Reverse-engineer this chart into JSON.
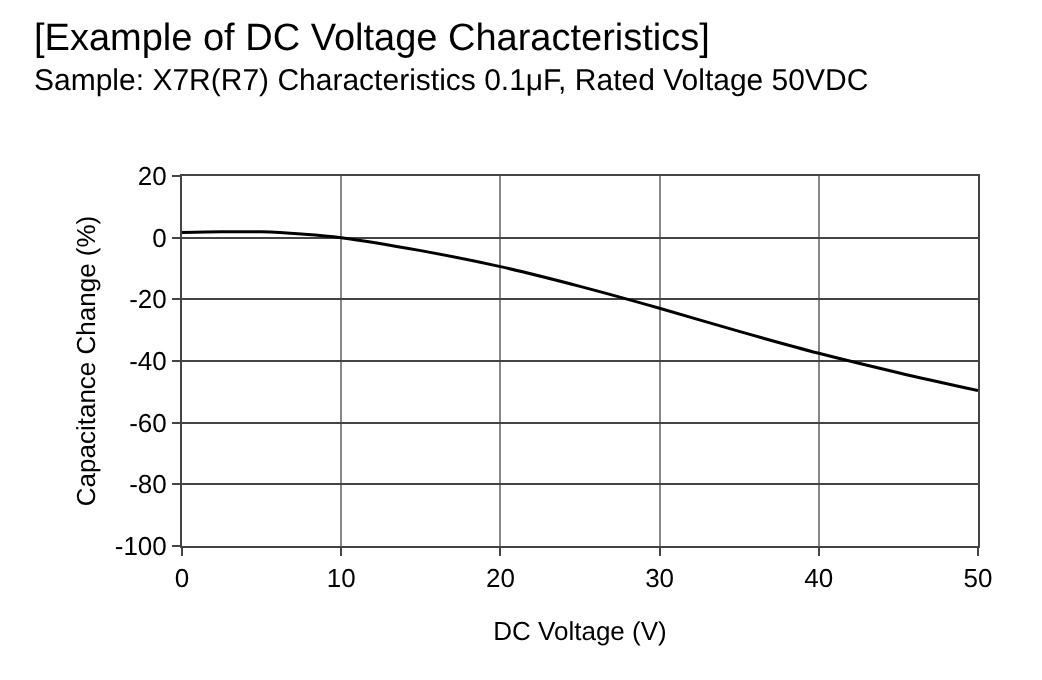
{
  "chart_data": {
    "type": "line",
    "title": "[Example of DC Voltage Characteristics]",
    "subtitle": "Sample: X7R(R7) Characteristics 0.1μF, Rated Voltage 50VDC",
    "xlabel": "DC Voltage (V)",
    "ylabel": "Capacitance Change (%)",
    "x": [
      0,
      2.5,
      5,
      7.5,
      10,
      15,
      20,
      25,
      30,
      35,
      40,
      45,
      50
    ],
    "series": [
      {
        "color": "#000000",
        "values": [
          1.7,
          1.9,
          1.9,
          1.2,
          0,
          -4.2,
          -9.4,
          -15.8,
          -22.9,
          -30.4,
          -37.5,
          -43.8,
          -49.6
        ]
      }
    ],
    "xlim": [
      0,
      50
    ],
    "xticks": [
      0,
      10,
      20,
      30,
      40,
      50
    ],
    "ylim": [
      -100,
      20
    ],
    "yticks": [
      -100,
      -80,
      -60,
      -40,
      -20,
      0,
      20
    ],
    "grid": true,
    "marker": "none",
    "line_style": "solid"
  }
}
